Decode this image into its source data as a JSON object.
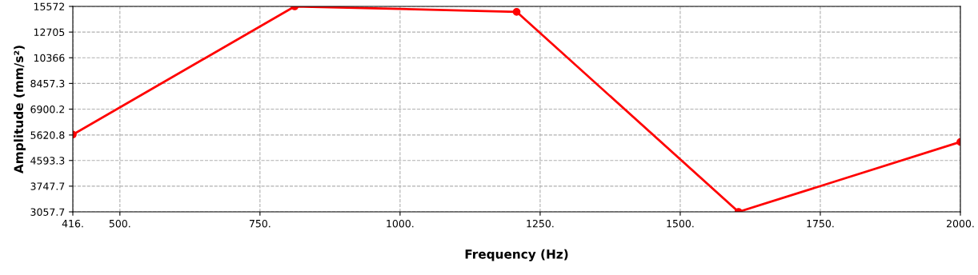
{
  "chart_data": {
    "type": "line",
    "xlabel": "Frequency (Hz)",
    "ylabel": "Amplitude (mm/s²)",
    "x": [
      416,
      812,
      1208,
      1604,
      2000
    ],
    "series": [
      {
        "color": "#ff0000",
        "values": [
          5640,
          15572,
          14914,
          3057.7,
          5320
        ]
      }
    ],
    "log": "y",
    "xlim": [
      416,
      2000
    ],
    "ylim": [
      3057.7,
      15572
    ],
    "xticks": [
      {
        "value": 416,
        "label": "416."
      },
      {
        "value": 500,
        "label": "500."
      },
      {
        "value": 750,
        "label": "750."
      },
      {
        "value": 1000,
        "label": "1000."
      },
      {
        "value": 1250,
        "label": "1250."
      },
      {
        "value": 1500,
        "label": "1500."
      },
      {
        "value": 1750,
        "label": "1750."
      },
      {
        "value": 2000,
        "label": "2000."
      }
    ],
    "yticks": [
      3057.7,
      3747.7,
      4593.3,
      5620.8,
      6900.2,
      8457.3,
      10366,
      12705,
      15572
    ],
    "grid": true,
    "marker": "circle",
    "line_style": "solid"
  }
}
